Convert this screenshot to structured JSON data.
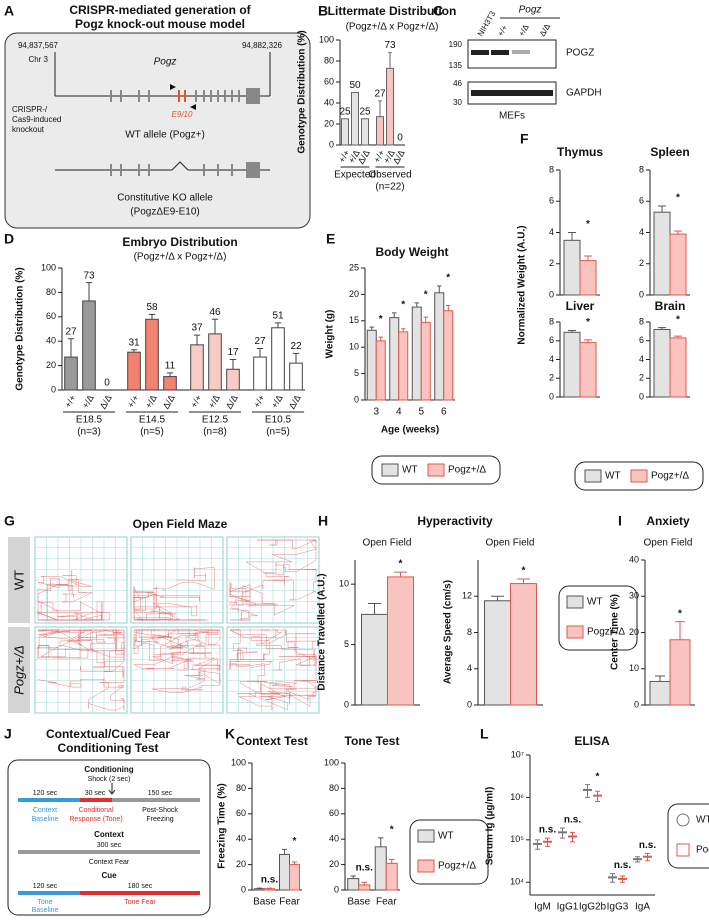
{
  "figure_labels": [
    "A",
    "B",
    "C",
    "D",
    "E",
    "F",
    "G",
    "H",
    "I",
    "J",
    "K",
    "L"
  ],
  "panel_a": {
    "title": "CRISPR-mediated generation of",
    "title_line2": "Pogz knock-out mouse model",
    "start": "94,837,567",
    "end": "94,882,326",
    "chromosome": "Chr 3",
    "gene": "Pogz",
    "exons": "E9/10",
    "method": "CRISPR-/",
    "method_line2": "Cas9-induced",
    "method_line3": "knockout",
    "wt_allele": "WT allele (Pogz+)",
    "ko_allele": "Constitutive KO allele",
    "ko_allele_line2": "(PogzΔE9-E10)"
  },
  "panel_c": {
    "cell_line": "NIH3T3",
    "genotypes": [
      "+/+",
      "+/Δ",
      "Δ/Δ"
    ],
    "gene": "Pogz",
    "markers_top": [
      "190",
      "135"
    ],
    "markers_bottom": [
      "46",
      "30"
    ],
    "proteins": [
      "POGZ",
      "GAPDH"
    ],
    "sample": "MEFs"
  },
  "panel_g": {
    "title": "Open Field Maze",
    "rows": [
      "WT",
      "Pogz+/Δ"
    ]
  },
  "panel_j": {
    "title": "Contextual/Cued Fear",
    "title_line2": "Conditioning Test",
    "conditioning": "Conditioning",
    "shock": "Shock (2 sec)",
    "t1": "120 sec",
    "t2": "30 sec",
    "t3": "150 sec",
    "phase1": "Context",
    "phase1_line2": "Baseline",
    "phase2": "Conditional",
    "phase2_line2": "Response (Tone)",
    "phase3": "Post-Shock",
    "phase3_line2": "Freezing",
    "context": "Context",
    "context_time": "300 sec",
    "context_phase": "Context Fear",
    "cue": "Cue",
    "cue_t1": "120 sec",
    "cue_t2": "180 sec",
    "cue_phase1": "Tone",
    "cue_phase1_line2": "Baseline",
    "cue_phase2": "Tone Fear"
  },
  "chart_data": [
    {
      "type": "bar",
      "title": "Littermate Distribution",
      "subtitle": "(Pogz+/Δ x Pogz+/Δ)",
      "ylabel": "Genotype Distribution (%)",
      "categories": [
        "+/+",
        "+/Δ",
        "Δ/Δ",
        "+/+",
        "+/Δ",
        "Δ/Δ"
      ],
      "groups": [
        "Expected",
        "Observed"
      ],
      "group_notes": [
        null,
        "(n=22)"
      ],
      "series": [
        {
          "values": [
            25,
            50,
            25,
            27,
            73,
            0
          ],
          "errors": [
            null,
            null,
            null,
            15,
            15,
            null
          ],
          "colors": [
            "#e3e3e3",
            "#e3e3e3",
            "#e3e3e3",
            "#f9c4bf",
            "#f9c4bf",
            "#f9c4bf"
          ],
          "stroke": "#666"
        }
      ],
      "data_labels": true,
      "ylim": [
        0,
        100
      ],
      "yticks": [
        0,
        20,
        40,
        60,
        80,
        100
      ]
    },
    {
      "type": "bar",
      "title": "Embryo Distribution",
      "subtitle": "(Pogz+/Δ x Pogz+/Δ)",
      "ylabel": "Genotype Distribution (%)",
      "categories": [
        "+/+",
        "+/Δ",
        "Δ/Δ",
        "+/+",
        "+/Δ",
        "Δ/Δ",
        "+/+",
        "+/Δ",
        "Δ/Δ",
        "+/+",
        "+/Δ",
        "Δ/Δ"
      ],
      "groups": [
        "E18.5",
        "E14.5",
        "E12.5",
        "E10.5"
      ],
      "group_notes": [
        "(n=3)",
        "(n=5)",
        "(n=8)",
        "(n=5)"
      ],
      "series": [
        {
          "values": [
            27,
            73,
            0,
            31,
            58,
            11,
            37,
            46,
            17,
            27,
            51,
            22
          ],
          "errors": [
            15,
            15,
            null,
            2,
            4,
            3,
            8,
            12,
            8,
            7,
            4,
            8
          ],
          "colors": [
            "#9a9a9a",
            "#9a9a9a",
            "#9a9a9a",
            "#f4806f",
            "#f4806f",
            "#f4806f",
            "#f9cbc6",
            "#f9cbc6",
            "#f9cbc6",
            "#ffffff",
            "#ffffff",
            "#ffffff"
          ],
          "stroke": "#444"
        }
      ],
      "data_labels": true,
      "ylim": [
        0,
        100
      ],
      "yticks": [
        0,
        20,
        40,
        60,
        80,
        100
      ]
    },
    {
      "type": "bar",
      "title": "Body Weight",
      "ylabel": "Weight (g)",
      "xlabel": "Age (weeks)",
      "categories": [
        "3",
        "4",
        "5",
        "6"
      ],
      "series": [
        {
          "name": "WT",
          "color": "#e3e3e3",
          "stroke": "#555",
          "values": [
            13.2,
            15.6,
            17.6,
            20.3
          ],
          "errors": [
            0.6,
            0.9,
            0.8,
            1.3
          ]
        },
        {
          "name": "Pogz+/Δ",
          "color": "#f9c4bf",
          "stroke": "#e0584c",
          "values": [
            11.2,
            12.9,
            14.7,
            16.9
          ],
          "errors": [
            0.7,
            0.6,
            1.0,
            1.0
          ]
        }
      ],
      "annotations": [
        "*",
        "*",
        "*",
        "*"
      ],
      "legend": true,
      "ylim": [
        0,
        25
      ],
      "yticks": [
        0,
        5,
        10,
        15,
        20,
        25
      ]
    },
    {
      "type": "bar",
      "title": "Thymus",
      "ylabel": "Normalized Weight (A.U.)",
      "series": [
        {
          "color": "#e3e3e3",
          "stroke": "#555",
          "values": [
            3.5
          ],
          "errors": [
            0.5
          ]
        },
        {
          "color": "#f9c4bf",
          "stroke": "#e0584c",
          "values": [
            2.2
          ],
          "errors": [
            0.3
          ]
        }
      ],
      "annotations": [
        "*"
      ],
      "ylim": [
        0,
        8
      ],
      "yticks": [
        0,
        2,
        4,
        6,
        8
      ]
    },
    {
      "type": "bar",
      "title": "Spleen",
      "series": [
        {
          "color": "#e3e3e3",
          "stroke": "#555",
          "values": [
            5.3
          ],
          "errors": [
            0.4
          ]
        },
        {
          "color": "#f9c4bf",
          "stroke": "#e0584c",
          "values": [
            3.9
          ],
          "errors": [
            0.2
          ]
        }
      ],
      "annotations": [
        "*"
      ],
      "ylim": [
        0,
        8
      ],
      "yticks": [
        0,
        2,
        4,
        6,
        8
      ]
    },
    {
      "type": "bar",
      "title": "Liver",
      "series": [
        {
          "color": "#e3e3e3",
          "stroke": "#555",
          "values": [
            6.9
          ],
          "errors": [
            0.2
          ]
        },
        {
          "color": "#f9c4bf",
          "stroke": "#e0584c",
          "values": [
            5.8
          ],
          "errors": [
            0.3
          ]
        }
      ],
      "annotations": [
        "*"
      ],
      "ylim": [
        0,
        8
      ],
      "yticks": [
        0,
        2,
        4,
        6,
        8
      ]
    },
    {
      "type": "bar",
      "title": "Brain",
      "series": [
        {
          "name": "WT",
          "color": "#e3e3e3",
          "stroke": "#555",
          "values": [
            7.2
          ],
          "errors": [
            0.2
          ]
        },
        {
          "name": "Pogz+/Δ",
          "color": "#f9c4bf",
          "stroke": "#e0584c",
          "values": [
            6.3
          ],
          "errors": [
            0.2
          ]
        }
      ],
      "annotations": [
        "*"
      ],
      "legend": true,
      "ylim": [
        0,
        8
      ],
      "yticks": [
        0,
        2,
        4,
        6,
        8
      ]
    },
    {
      "type": "bar",
      "title": "Hyperactivity",
      "subtitle": "Open Field",
      "ylabel": "Distance Travelled (A.U.)",
      "series": [
        {
          "color": "#e3e3e3",
          "stroke": "#555",
          "values": [
            7.5
          ],
          "errors": [
            0.9
          ]
        },
        {
          "color": "#f9c4bf",
          "stroke": "#e0584c",
          "values": [
            10.6
          ],
          "errors": [
            0.4
          ]
        }
      ],
      "annotations": [
        "*"
      ],
      "ylim": [
        0,
        12
      ],
      "yticks": [
        0,
        5,
        10
      ]
    },
    {
      "type": "bar",
      "subtitle": "Open Field",
      "ylabel": "Average Speed (cm/s)",
      "series": [
        {
          "name": "WT",
          "color": "#e3e3e3",
          "stroke": "#555",
          "values": [
            11.5
          ],
          "errors": [
            0.5
          ]
        },
        {
          "name": "Pogz+/Δ",
          "color": "#f9c4bf",
          "stroke": "#e0584c",
          "values": [
            13.4
          ],
          "errors": [
            0.5
          ]
        }
      ],
      "annotations": [
        "*"
      ],
      "legend": true,
      "ylim": [
        0,
        16
      ],
      "yticks": [
        0,
        4,
        8,
        12
      ]
    },
    {
      "type": "bar",
      "title": "Anxiety",
      "subtitle": "Open Field",
      "ylabel": "Center Time (%)",
      "series": [
        {
          "color": "#e3e3e3",
          "stroke": "#555",
          "values": [
            6.5
          ],
          "errors": [
            1.5
          ]
        },
        {
          "color": "#f9c4bf",
          "stroke": "#e0584c",
          "values": [
            18
          ],
          "errors": [
            5
          ]
        }
      ],
      "annotations": [
        "*"
      ],
      "ylim": [
        0,
        40
      ],
      "yticks": [
        0,
        10,
        20,
        30,
        40
      ]
    },
    {
      "type": "bar",
      "title": "Context Test",
      "ylabel": "Freezing Time (%)",
      "categories": [
        "Base",
        "Fear"
      ],
      "series": [
        {
          "color": "#e3e3e3",
          "stroke": "#555",
          "values": [
            1,
            28
          ],
          "errors": [
            0.5,
            4
          ]
        },
        {
          "color": "#f9c4bf",
          "stroke": "#e0584c",
          "values": [
            1,
            20
          ],
          "errors": [
            0.5,
            2
          ]
        }
      ],
      "annotations": [
        "n.s.",
        "*"
      ],
      "ylim": [
        0,
        100
      ],
      "yticks": [
        0,
        20,
        40,
        60,
        80,
        100
      ]
    },
    {
      "type": "bar",
      "title": "Tone Test",
      "categories": [
        "Base",
        "Fear"
      ],
      "series": [
        {
          "name": "WT",
          "color": "#e3e3e3",
          "stroke": "#555",
          "values": [
            9,
            34
          ],
          "errors": [
            2,
            7
          ]
        },
        {
          "name": "Pogz+/Δ",
          "color": "#f9c4bf",
          "stroke": "#e0584c",
          "values": [
            4,
            21
          ],
          "errors": [
            2,
            3
          ]
        }
      ],
      "annotations": [
        "n.s.",
        "*"
      ],
      "legend": true,
      "ylim": [
        0,
        100
      ],
      "yticks": [
        0,
        20,
        40,
        60,
        80,
        100
      ]
    },
    {
      "type": "strip",
      "title": "ELISA",
      "ylabel": "Serum Ig (µg/ml)",
      "log": true,
      "categories": [
        "IgM",
        "IgG1",
        "IgG2b",
        "IgG3",
        "IgA"
      ],
      "series": [
        {
          "name": "WT",
          "marker": "circle",
          "color": "#ffffff",
          "stroke": "#777",
          "values": [
            80000,
            150000,
            1500000,
            13000,
            35000
          ],
          "errors": [
            20000,
            40000,
            500000,
            3000,
            5000
          ]
        },
        {
          "name": "Pogz+/Δ",
          "marker": "square",
          "color": "#ffffff",
          "stroke": "#e0584c",
          "values": [
            90000,
            120000,
            1100000,
            12000,
            40000
          ],
          "errors": [
            20000,
            30000,
            300000,
            2000,
            8000
          ]
        }
      ],
      "annotations": [
        "n.s.",
        "n.s.",
        "*",
        "n.s.",
        "n.s."
      ],
      "legend": true,
      "ylim": [
        5000,
        10000000
      ],
      "yticks": [
        {
          "value": 10000,
          "label": "10⁴"
        },
        {
          "value": 100000,
          "label": "10⁵"
        },
        {
          "value": 1000000,
          "label": "10⁶"
        },
        {
          "value": 10000000,
          "label": "10⁷"
        }
      ]
    }
  ]
}
